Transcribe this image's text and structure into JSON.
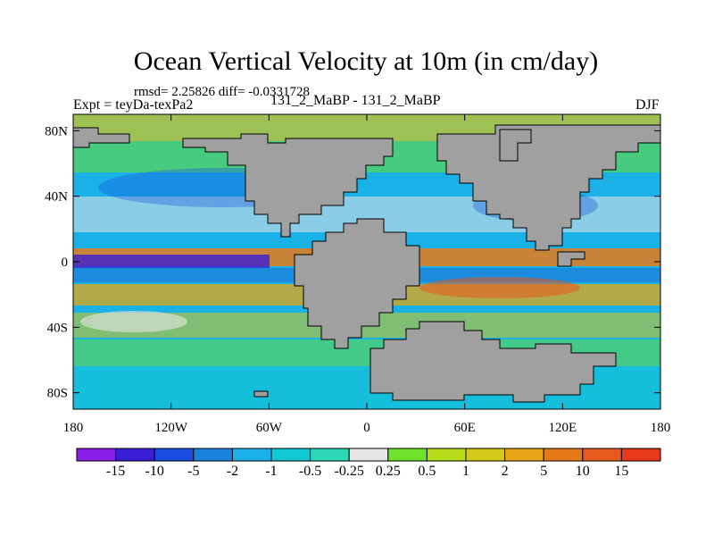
{
  "chart_data": {
    "type": "heatmap",
    "title": "Ocean Vertical Velocity at 10m (in cm/day)",
    "stats": "rmsd= 2.25826 diff= -0.0331728",
    "left_label": "Expt = teyDa-texPa2",
    "center_label": "131_2_MaBP - 131_2_MaBP",
    "right_label": "DJF",
    "x_ticks": [
      "180",
      "120W",
      "60W",
      "0",
      "60E",
      "120E",
      "180"
    ],
    "x_tick_values": [
      -180,
      -120,
      -60,
      0,
      60,
      120,
      180
    ],
    "y_ticks": [
      "80N",
      "40N",
      "0",
      "40S",
      "80S"
    ],
    "y_tick_values": [
      80,
      40,
      0,
      -40,
      -80
    ],
    "xlim": [
      -180,
      180
    ],
    "ylim": [
      -90,
      90
    ],
    "colorbar": {
      "labels": [
        "-15",
        "-10",
        "-5",
        "-2",
        "-1",
        "-0.5",
        "-0.25",
        "0.25",
        "0.5",
        "1",
        "2",
        "5",
        "10",
        "15"
      ],
      "colors": [
        "#8a1de6",
        "#3a1ed6",
        "#1a4ee0",
        "#1b82dc",
        "#1ab2e6",
        "#12c8d4",
        "#2cd8b8",
        "#e6e6e6",
        "#6ee22a",
        "#b6dc1a",
        "#d6c816",
        "#e6a616",
        "#e67a18",
        "#e65a1e",
        "#e63a1a"
      ]
    },
    "land_color": "#a0a0a0"
  }
}
